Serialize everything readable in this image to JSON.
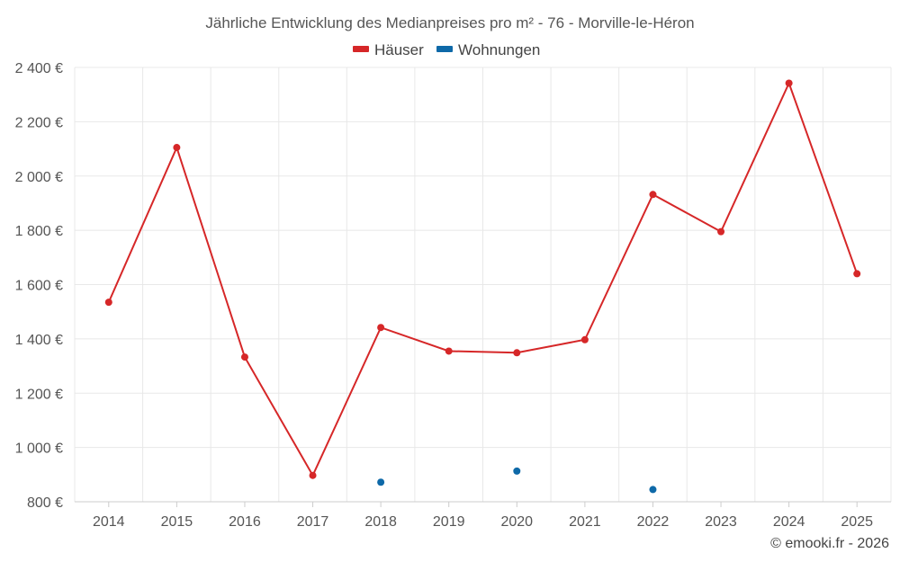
{
  "chart_data": {
    "type": "line",
    "title": "Jährliche Entwicklung des Medianpreises pro m² - 76 - Morville-le-Héron",
    "categories": [
      "2014",
      "2015",
      "2016",
      "2017",
      "2018",
      "2019",
      "2020",
      "2021",
      "2022",
      "2023",
      "2024",
      "2025"
    ],
    "ylim": [
      800,
      2400
    ],
    "yticks": [
      800,
      1000,
      1200,
      1400,
      1600,
      1800,
      2000,
      2200,
      2400
    ],
    "ytick_labels": [
      "800 €",
      "1 000 €",
      "1 200 €",
      "1 400 €",
      "1 600 €",
      "1 800 €",
      "2 000 €",
      "2 200 €",
      "2 400 €"
    ],
    "grid": true,
    "legend_position": "top-center",
    "series": [
      {
        "name": "Häuser",
        "color": "#d62728",
        "values": [
          1535,
          2105,
          1333,
          897,
          1442,
          1355,
          1349,
          1397,
          1932,
          1795,
          2342,
          1640
        ]
      },
      {
        "name": "Wohnungen",
        "color": "#0e69a8",
        "values": [
          null,
          null,
          null,
          null,
          872,
          null,
          913,
          null,
          845,
          null,
          null,
          null
        ]
      }
    ]
  },
  "credit": "© emooki.fr - 2026"
}
